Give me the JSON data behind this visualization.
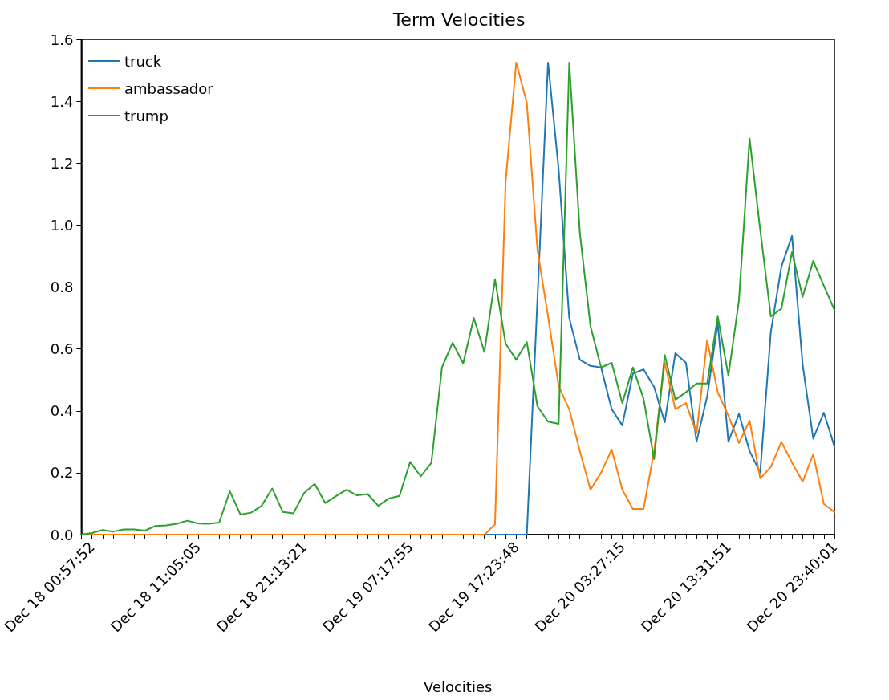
{
  "chart_data": {
    "type": "line",
    "title": "Term Velocities",
    "xlabel": "Velocities",
    "categories": [
      null,
      "Dec 18 00:57:52",
      null,
      null,
      null,
      null,
      null,
      null,
      null,
      null,
      null,
      "Dec 18 11:05:05",
      null,
      null,
      null,
      null,
      null,
      null,
      null,
      null,
      null,
      "Dec 18 21:13:21",
      null,
      null,
      null,
      null,
      null,
      null,
      null,
      null,
      null,
      "Dec 19 07:17:55",
      null,
      null,
      null,
      null,
      null,
      null,
      null,
      null,
      null,
      "Dec 19 17:23:48",
      null,
      null,
      null,
      null,
      null,
      null,
      null,
      null,
      null,
      "Dec 20 03:27:15",
      null,
      null,
      null,
      null,
      null,
      null,
      null,
      null,
      null,
      "Dec 20 13:31:51",
      null,
      null,
      null,
      null,
      null,
      null,
      null,
      null,
      null,
      "Dec 20 23:40:01"
    ],
    "series": [
      {
        "name": "truck",
        "color": "#1f77b4",
        "values": [
          null,
          null,
          null,
          null,
          null,
          null,
          null,
          null,
          null,
          null,
          null,
          null,
          null,
          null,
          null,
          null,
          null,
          null,
          null,
          null,
          null,
          null,
          null,
          null,
          null,
          null,
          null,
          null,
          null,
          null,
          null,
          null,
          null,
          null,
          null,
          null,
          null,
          null,
          0,
          0,
          0,
          0,
          0,
          0.76,
          1.525,
          1.18,
          0.7,
          0.565,
          0.545,
          0.54,
          0.405,
          0.353,
          0.52,
          0.534,
          0.477,
          0.363,
          0.586,
          0.555,
          0.3,
          0.446,
          0.685,
          0.3,
          0.39,
          0.27,
          0.2,
          0.654,
          0.866,
          0.965,
          0.55,
          0.31,
          0.394,
          0.285
        ]
      },
      {
        "name": "ambassador",
        "color": "#ff7f0e",
        "values": [
          0,
          0,
          0,
          0,
          0,
          0,
          0,
          0,
          0,
          0,
          0,
          0,
          0,
          0,
          0,
          0,
          0,
          0,
          0,
          0,
          0,
          0,
          0,
          0,
          0,
          0,
          0,
          0,
          0,
          0,
          0,
          0,
          0,
          0,
          0,
          0,
          0,
          0,
          0,
          0.033,
          1.14,
          1.525,
          1.395,
          0.92,
          0.705,
          0.48,
          0.405,
          0.27,
          0.145,
          0.2,
          0.275,
          0.145,
          0.083,
          0.083,
          0.27,
          0.555,
          0.405,
          0.425,
          0.327,
          0.628,
          0.46,
          0.384,
          0.296,
          0.368,
          0.182,
          0.218,
          0.3,
          0.233,
          0.171,
          0.26,
          0.099,
          0.073
        ]
      },
      {
        "name": "trump",
        "color": "#2ca02c",
        "values": [
          0,
          0.005,
          0.015,
          0.01,
          0.017,
          0.017,
          0.013,
          0.028,
          0.03,
          0.035,
          0.045,
          0.036,
          0.035,
          0.039,
          0.14,
          0.065,
          0.071,
          0.093,
          0.149,
          0.073,
          0.069,
          0.134,
          0.164,
          0.102,
          0.124,
          0.145,
          0.127,
          0.131,
          0.093,
          0.117,
          0.125,
          0.235,
          0.188,
          0.232,
          0.54,
          0.62,
          0.553,
          0.7,
          0.59,
          0.825,
          0.617,
          0.565,
          0.622,
          0.415,
          0.365,
          0.358,
          1.525,
          0.975,
          0.674,
          0.54,
          0.555,
          0.425,
          0.54,
          0.44,
          0.244,
          0.58,
          0.436,
          0.46,
          0.488,
          0.488,
          0.705,
          0.513,
          0.757,
          1.28,
          0.985,
          0.705,
          0.73,
          0.913,
          0.768,
          0.884,
          0.804,
          0.726
        ]
      }
    ],
    "ylim": [
      0,
      1.6
    ],
    "yticks": [
      {
        "value": 0,
        "label": "0.0"
      },
      {
        "value": 0.2,
        "label": "0.2"
      },
      {
        "value": 0.4,
        "label": "0.4"
      },
      {
        "value": 0.6,
        "label": "0.6"
      },
      {
        "value": 0.8,
        "label": "0.8"
      },
      {
        "value": 1.0,
        "label": "1.0"
      },
      {
        "value": 1.2,
        "label": "1.2"
      },
      {
        "value": 1.4,
        "label": "1.4"
      },
      {
        "value": 1.6,
        "label": "1.6"
      }
    ],
    "grid": false,
    "legend": "top left",
    "marker": "none",
    "line_style": "solid"
  }
}
